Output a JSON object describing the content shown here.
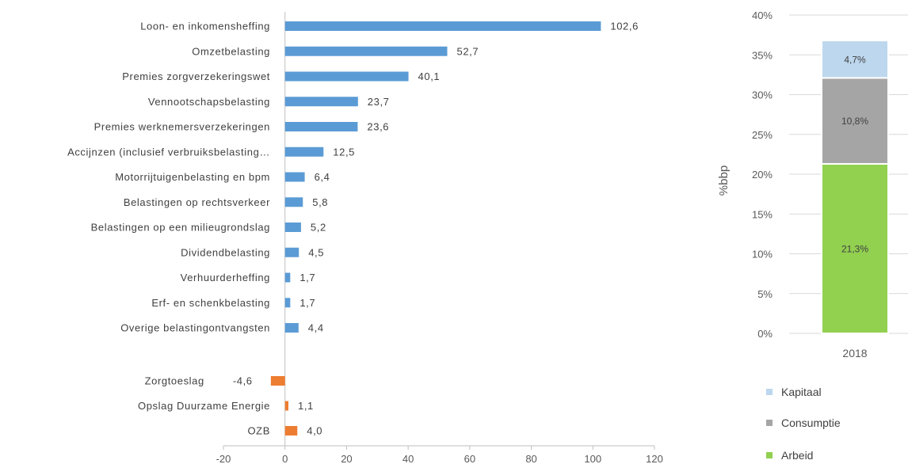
{
  "chart_data": [
    {
      "type": "bar",
      "orientation": "horizontal",
      "categories": [
        "Loon- en inkomensheffing",
        "Omzetbelasting",
        "Premies zorgverzekeringswet",
        "Vennootschapsbelasting",
        "Premies werknemersverzekeringen",
        "Accijnzen (inclusief verbruiksbelasting…",
        "Motorrijtuigenbelasting en bpm",
        "Belastingen op rechtsverkeer",
        "Belastingen op een milieugrondslag",
        "Dividendbelasting",
        "Verhuurderheffing",
        "Erf- en schenkbelasting",
        "Overige belastingontvangsten",
        "Zorgtoeslag",
        "Opslag Duurzame Energie",
        "OZB"
      ],
      "values": [
        102.6,
        52.7,
        40.1,
        23.7,
        23.6,
        12.5,
        6.4,
        5.8,
        5.2,
        4.5,
        1.7,
        1.7,
        4.4,
        -4.6,
        1.1,
        4.0
      ],
      "value_labels": [
        "102,6",
        "52,7",
        "40,1",
        "23,7",
        "23,6",
        "12,5",
        "6,4",
        "5,8",
        "5,2",
        "4,5",
        "1,7",
        "1,7",
        "4,4",
        "-4,6",
        "1,1",
        "4,0"
      ],
      "groups": [
        "blue",
        "blue",
        "blue",
        "blue",
        "blue",
        "blue",
        "blue",
        "blue",
        "blue",
        "blue",
        "blue",
        "blue",
        "blue",
        "orange",
        "orange",
        "orange"
      ],
      "colors": {
        "blue": "#5b9bd5",
        "orange": "#ed7d31"
      },
      "xlim": [
        -20,
        120
      ],
      "xticks": [
        -20,
        0,
        20,
        40,
        60,
        80,
        100,
        120
      ],
      "xtick_labels": [
        "-20",
        "0",
        "20",
        "40",
        "60",
        "80",
        "100",
        "120"
      ],
      "grid": false
    },
    {
      "type": "bar",
      "stacked": true,
      "categories": [
        "2018"
      ],
      "series": [
        {
          "name": "Arbeid",
          "values": [
            21.3
          ],
          "label": "21,3%",
          "color": "#92d050"
        },
        {
          "name": "Consumptie",
          "values": [
            10.8
          ],
          "label": "10,8%",
          "color": "#a5a5a5"
        },
        {
          "name": "Kapitaal",
          "values": [
            4.7
          ],
          "label": "4,7%",
          "color": "#bdd7ee"
        }
      ],
      "ylabel": "%bbp",
      "ylim": [
        0,
        40
      ],
      "yticks": [
        0,
        5,
        10,
        15,
        20,
        25,
        30,
        35,
        40
      ],
      "ytick_labels": [
        "0%",
        "5%",
        "10%",
        "15%",
        "20%",
        "25%",
        "30%",
        "35%",
        "40%"
      ],
      "grid": true,
      "legend": {
        "position": "bottom",
        "items": [
          {
            "name": "Kapitaal",
            "color": "#bdd7ee"
          },
          {
            "name": "Consumptie",
            "color": "#a5a5a5"
          },
          {
            "name": "Arbeid",
            "color": "#92d050"
          }
        ]
      }
    }
  ]
}
